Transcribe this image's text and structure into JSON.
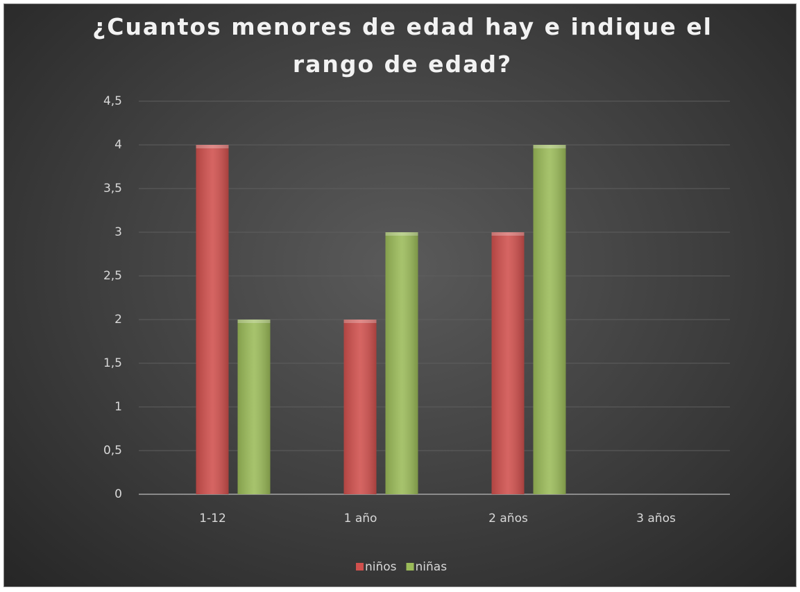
{
  "chart_data": {
    "type": "bar",
    "title": "¿Cuantos menores de edad hay e indique el rango de edad?",
    "categories": [
      "1-12",
      "1 año",
      "2 años",
      "3 años"
    ],
    "series": [
      {
        "name": "niños",
        "color": "#d0504d",
        "values": [
          4,
          2,
          3,
          0
        ]
      },
      {
        "name": "niñas",
        "color": "#9bbb59",
        "values": [
          2,
          3,
          4,
          0
        ]
      }
    ],
    "ylim": [
      0,
      4.5
    ],
    "yticks": [
      0,
      {
        "value": 0.5,
        "label": "0,5"
      },
      1,
      {
        "value": 1.5,
        "label": "1,5"
      },
      2,
      {
        "value": 2.5,
        "label": "2,5"
      },
      3,
      {
        "value": 3.5,
        "label": "3,5"
      },
      4,
      {
        "value": 4.5,
        "label": "4,5"
      }
    ],
    "grid": true,
    "legend": "bottom"
  }
}
